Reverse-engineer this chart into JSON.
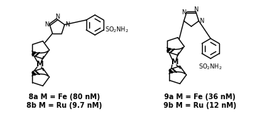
{
  "background_color": "#ffffff",
  "label_8a": "8a M = Fe (80 nM)",
  "label_8b": "8b M = Ru (9.7 nM)",
  "label_9a": "9a M = Fe (36 nM)",
  "label_9b": "9b M = Ru (12 nM)",
  "label_fontsize": 7.0,
  "figsize": [
    3.81,
    1.64
  ],
  "dpi": 100
}
